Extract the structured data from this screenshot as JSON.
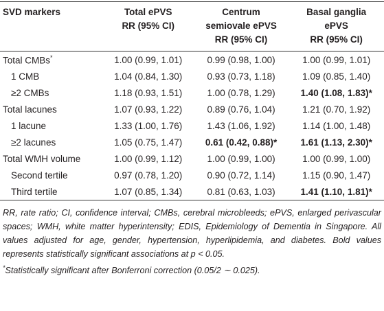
{
  "table": {
    "header": [
      [
        "SVD markers"
      ],
      [
        "Total ePVS",
        "RR (95% CI)"
      ],
      [
        "Centrum",
        "semiovale ePVS",
        "RR (95% CI)"
      ],
      [
        "Basal ganglia",
        "ePVS",
        "RR (95% CI)"
      ]
    ],
    "rows": [
      {
        "label": "Total CMBs",
        "marker": "*",
        "indent": false,
        "cells": [
          {
            "text": "1.00 (0.99, 1.01)",
            "bold": false
          },
          {
            "text": "0.99 (0.98, 1.00)",
            "bold": false
          },
          {
            "text": "1.00 (0.99, 1.01)",
            "bold": false
          }
        ]
      },
      {
        "label": "1 CMB",
        "indent": true,
        "cells": [
          {
            "text": "1.04 (0.84, 1.30)",
            "bold": false
          },
          {
            "text": "0.93 (0.73, 1.18)",
            "bold": false
          },
          {
            "text": "1.09 (0.85, 1.40)",
            "bold": false
          }
        ]
      },
      {
        "label": "≥2 CMBs",
        "indent": true,
        "cells": [
          {
            "text": "1.18 (0.93, 1.51)",
            "bold": false
          },
          {
            "text": "1.00 (0.78, 1.29)",
            "bold": false
          },
          {
            "text": "1.40 (1.08, 1.83)*",
            "bold": true
          }
        ]
      },
      {
        "label": "Total lacunes",
        "indent": false,
        "cells": [
          {
            "text": "1.07 (0.93, 1.22)",
            "bold": false
          },
          {
            "text": "0.89 (0.76, 1.04)",
            "bold": false
          },
          {
            "text": "1.21 (0.70, 1.92)",
            "bold": false
          }
        ]
      },
      {
        "label": "1 lacune",
        "indent": true,
        "cells": [
          {
            "text": "1.33 (1.00, 1.76)",
            "bold": false
          },
          {
            "text": "1.43 (1.06, 1.92)",
            "bold": false
          },
          {
            "text": "1.14 (1.00, 1.48)",
            "bold": false
          }
        ]
      },
      {
        "label": "≥2 lacunes",
        "indent": true,
        "cells": [
          {
            "text": "1.05 (0.75, 1.47)",
            "bold": false
          },
          {
            "text": "0.61 (0.42, 0.88)*",
            "bold": true
          },
          {
            "text": "1.61 (1.13, 2.30)*",
            "bold": true
          }
        ]
      },
      {
        "label": "Total WMH volume",
        "indent": false,
        "cells": [
          {
            "text": "1.00 (0.99, 1.12)",
            "bold": false
          },
          {
            "text": "1.00 (0.99, 1.00)",
            "bold": false
          },
          {
            "text": "1.00 (0.99, 1.00)",
            "bold": false
          }
        ]
      },
      {
        "label": "Second tertile",
        "indent": true,
        "cells": [
          {
            "text": "0.97 (0.78, 1.20)",
            "bold": false
          },
          {
            "text": "0.90 (0.72, 1.14)",
            "bold": false
          },
          {
            "text": "1.15 (0.90, 1.47)",
            "bold": false
          }
        ]
      },
      {
        "label": "Third tertile",
        "indent": true,
        "cells": [
          {
            "text": "1.07 (0.85, 1.34)",
            "bold": false
          },
          {
            "text": "0.81 (0.63, 1.03)",
            "bold": false
          },
          {
            "text": "1.41 (1.10, 1.81)*",
            "bold": true
          }
        ]
      }
    ]
  },
  "footnotes": {
    "abbreviations": "RR, rate ratio; CI, confidence interval; CMBs, cerebral microbleeds; ePVS, enlarged perivascular spaces; WMH, white matter hyperintensity; EDIS, Epidemiology of Dementia in Singapore. All values adjusted for age, gender, hypertension, hyperlipidemia, and diabetes. Bold values represents statistically significant associations at p < 0.05.",
    "marker": "*",
    "significance": "Statistically significant after Bonferroni correction (0.05/2 ∼ 0.025)."
  }
}
